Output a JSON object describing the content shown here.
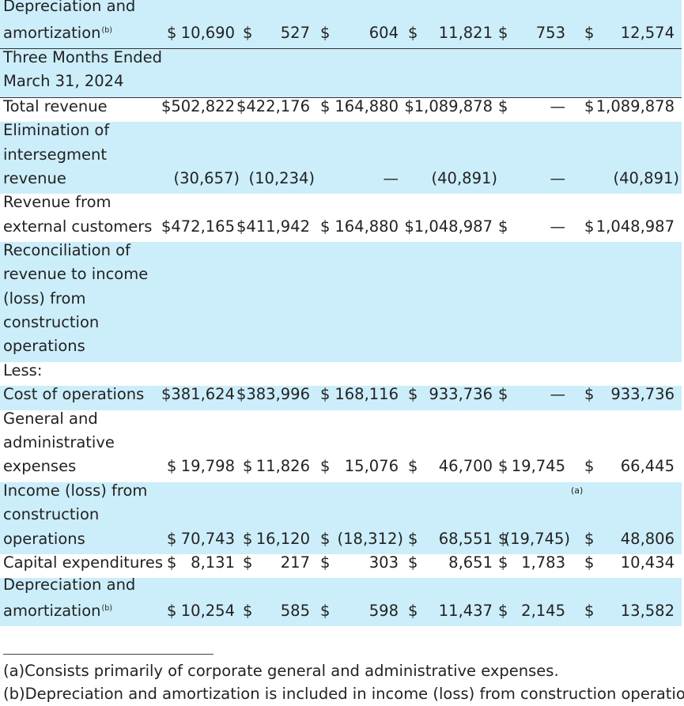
{
  "rows": [
    {
      "label": [
        "Depreciation and",
        "amortization"
      ],
      "sup": "(b)",
      "bg": "blue",
      "lines": 2,
      "cells": [
        "$",
        "10,690",
        "$",
        "527",
        "$",
        "604",
        "$",
        "11,821",
        "$",
        "753",
        "$",
        "12,574"
      ]
    },
    {
      "label": [
        "Three Months Ended",
        "March 31, 2024"
      ],
      "bg": "blue",
      "lines": 2,
      "topline": true,
      "cells": []
    },
    {
      "label": [
        "Total revenue"
      ],
      "bg": "white",
      "lines": 1,
      "topline": true,
      "cells": [
        "$502,822",
        "",
        "$422,176",
        "",
        "$",
        "164,880",
        "$1,089,878",
        "",
        "$",
        "—",
        "$",
        "1,089,878"
      ]
    },
    {
      "label": [
        "Elimination of",
        "intersegment",
        "revenue"
      ],
      "bg": "blue",
      "lines": 3,
      "cells": [
        "",
        "(30,657)",
        "",
        "(10,234)",
        "",
        "—",
        "",
        "(40,891)",
        "",
        "—",
        "",
        "(40,891)"
      ]
    },
    {
      "label": [
        "Revenue from",
        "external customers"
      ],
      "bg": "white",
      "lines": 2,
      "cells": [
        "$472,165",
        "",
        "$411,942",
        "",
        "$",
        "164,880",
        "$1,048,987",
        "",
        "$",
        "—",
        "$",
        "1,048,987"
      ]
    },
    {
      "label": [
        "Reconciliation of",
        "revenue to income",
        "(loss) from",
        "construction",
        "operations"
      ],
      "bg": "blue",
      "lines": 5,
      "cells": []
    },
    {
      "label": [
        "Less:"
      ],
      "bg": "white",
      "lines": 1,
      "cells": []
    },
    {
      "label": [
        "Cost of operations"
      ],
      "bg": "blue",
      "lines": 1,
      "cells": [
        "$381,624",
        "",
        "$383,996",
        "",
        "$",
        "168,116",
        "$",
        "933,736",
        "$",
        "—",
        "$",
        "933,736"
      ]
    },
    {
      "label": [
        "General and",
        "administrative",
        "expenses"
      ],
      "bg": "white",
      "lines": 3,
      "cells": [
        "$",
        "19,798",
        "$",
        "11,826",
        "$",
        "15,076",
        "$",
        "46,700",
        "$",
        "19,745",
        "$",
        "66,445"
      ]
    },
    {
      "label": [
        "Income (loss) from",
        "construction",
        "operations"
      ],
      "bg": "blue",
      "lines": 3,
      "fnmark": "(a)",
      "cells": [
        "$",
        "70,743",
        "$",
        "16,120",
        "$",
        "(18,312)",
        "$",
        "68,551",
        "$",
        "(19,745)",
        "$",
        "48,806"
      ]
    },
    {
      "label": [
        "Capital expenditures"
      ],
      "bg": "white",
      "lines": 1,
      "cells": [
        "$",
        "8,131",
        "$",
        "217",
        "$",
        "303",
        "$",
        "8,651",
        "$",
        "1,783",
        "$",
        "10,434"
      ]
    },
    {
      "label": [
        "Depreciation and",
        "amortization"
      ],
      "sup": "(b)",
      "bg": "blue",
      "lines": 2,
      "cells": [
        "$",
        "10,254",
        "$",
        "585",
        "$",
        "598",
        "$",
        "11,437",
        "$",
        "2,145",
        "$",
        "13,582"
      ]
    }
  ],
  "footnotes": {
    "a": "(a)Consists primarily of corporate general and administrative expenses.",
    "b": "(b)Depreciation and amortization is included in income (loss) from construction operations."
  }
}
